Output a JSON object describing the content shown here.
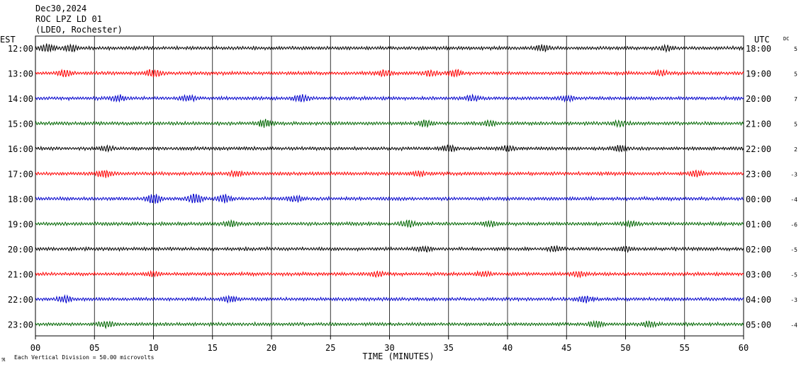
{
  "header": {
    "date": "Dec30,2024",
    "station": "ROC LPZ LD 01",
    "network": "(LDEO, Rochester)"
  },
  "chart_data": {
    "type": "line",
    "title": "ROC LPZ LD 01",
    "xlabel": "TIME (MINUTES)",
    "x_ticks": [
      "00",
      "05",
      "10",
      "15",
      "20",
      "25",
      "30",
      "35",
      "40",
      "45",
      "50",
      "55",
      "60"
    ],
    "xlim": [
      0,
      60
    ],
    "grid": true,
    "left_axis_label": "EST",
    "right_axis_label": "UTC",
    "dc_label": "DC",
    "footnote": "Each Vertical Division =   50.00 microvolts",
    "colors": [
      "#000000",
      "#ff0000",
      "#0000cc",
      "#006600"
    ],
    "rows": [
      {
        "est": "12:00",
        "utc": "18:00",
        "dc": "5"
      },
      {
        "est": "13:00",
        "utc": "19:00",
        "dc": "5"
      },
      {
        "est": "14:00",
        "utc": "20:00",
        "dc": "7"
      },
      {
        "est": "15:00",
        "utc": "21:00",
        "dc": "5"
      },
      {
        "est": "16:00",
        "utc": "22:00",
        "dc": "2"
      },
      {
        "est": "17:00",
        "utc": "23:00",
        "dc": "-3"
      },
      {
        "est": "18:00",
        "utc": "00:00",
        "dc": "-4"
      },
      {
        "est": "19:00",
        "utc": "01:00",
        "dc": "-6"
      },
      {
        "est": "20:00",
        "utc": "02:00",
        "dc": "-5"
      },
      {
        "est": "21:00",
        "utc": "03:00",
        "dc": "-5"
      },
      {
        "est": "22:00",
        "utc": "04:00",
        "dc": "-3"
      },
      {
        "est": "23:00",
        "utc": "05:00",
        "dc": "-4"
      }
    ]
  }
}
